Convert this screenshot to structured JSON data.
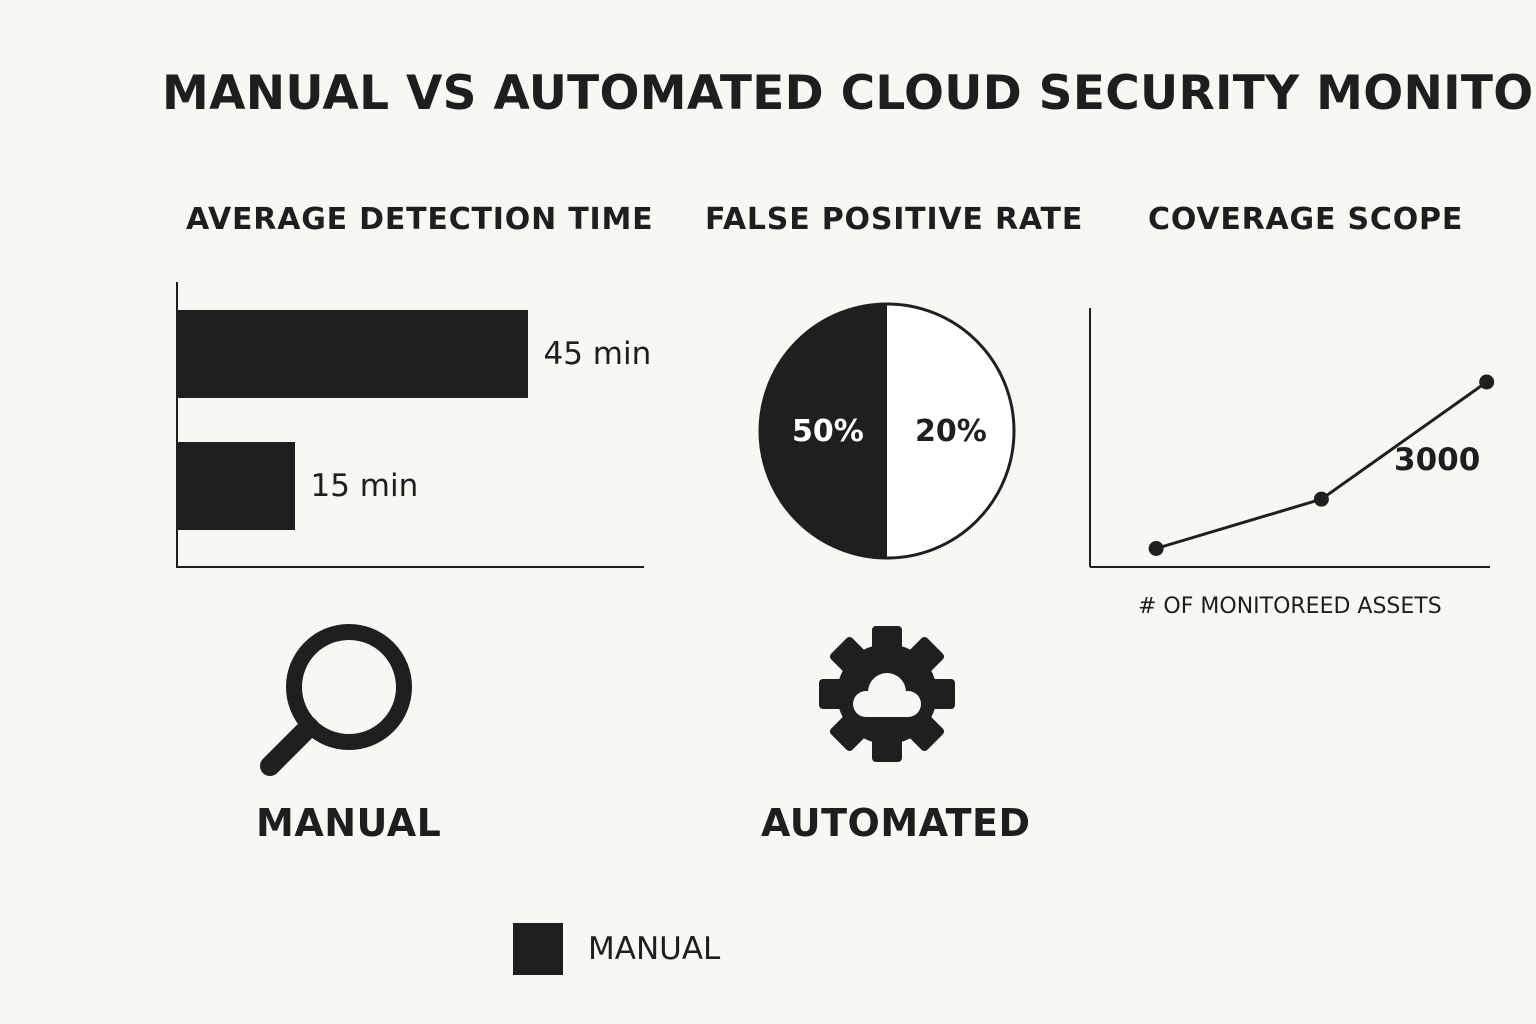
{
  "title": "MANUAL VS AUTOMATED CLOUD SECURITY MONITORING",
  "colors": {
    "background": "#f8f7f3",
    "ink": "#1f1f1f",
    "white": "#ffffff"
  },
  "icons": {
    "manual": "magnifying-glass-icon",
    "automated": "gear-cloud-icon"
  },
  "method_labels": {
    "manual": "MANUAL",
    "automated": "AUTOMATED"
  },
  "legend": [
    {
      "label": "MANUAL",
      "color": "#1f1f1f"
    }
  ],
  "chart_data": [
    {
      "type": "bar",
      "orientation": "horizontal",
      "title": "AVERAGE DETECTION TIME",
      "xlim": [
        0,
        60
      ],
      "bars": [
        {
          "value": 45,
          "label": "45 min"
        },
        {
          "value": 15,
          "label": "15 min"
        }
      ]
    },
    {
      "type": "pie",
      "title": "FALSE POSITIVE RATE",
      "slices": [
        {
          "label": "50%",
          "share": 0.5,
          "color": "#1f1f1f"
        },
        {
          "label": "20%",
          "share": 0.5,
          "color": "#ffffff"
        }
      ]
    },
    {
      "type": "line",
      "title": "COVERAGE SCOPE",
      "xlabel": "# OF MONITOREED ASSETS",
      "annotation": "3000",
      "x": [
        1,
        2,
        3
      ],
      "y": [
        300,
        1100,
        3000
      ],
      "ylim": [
        0,
        4200
      ]
    }
  ]
}
